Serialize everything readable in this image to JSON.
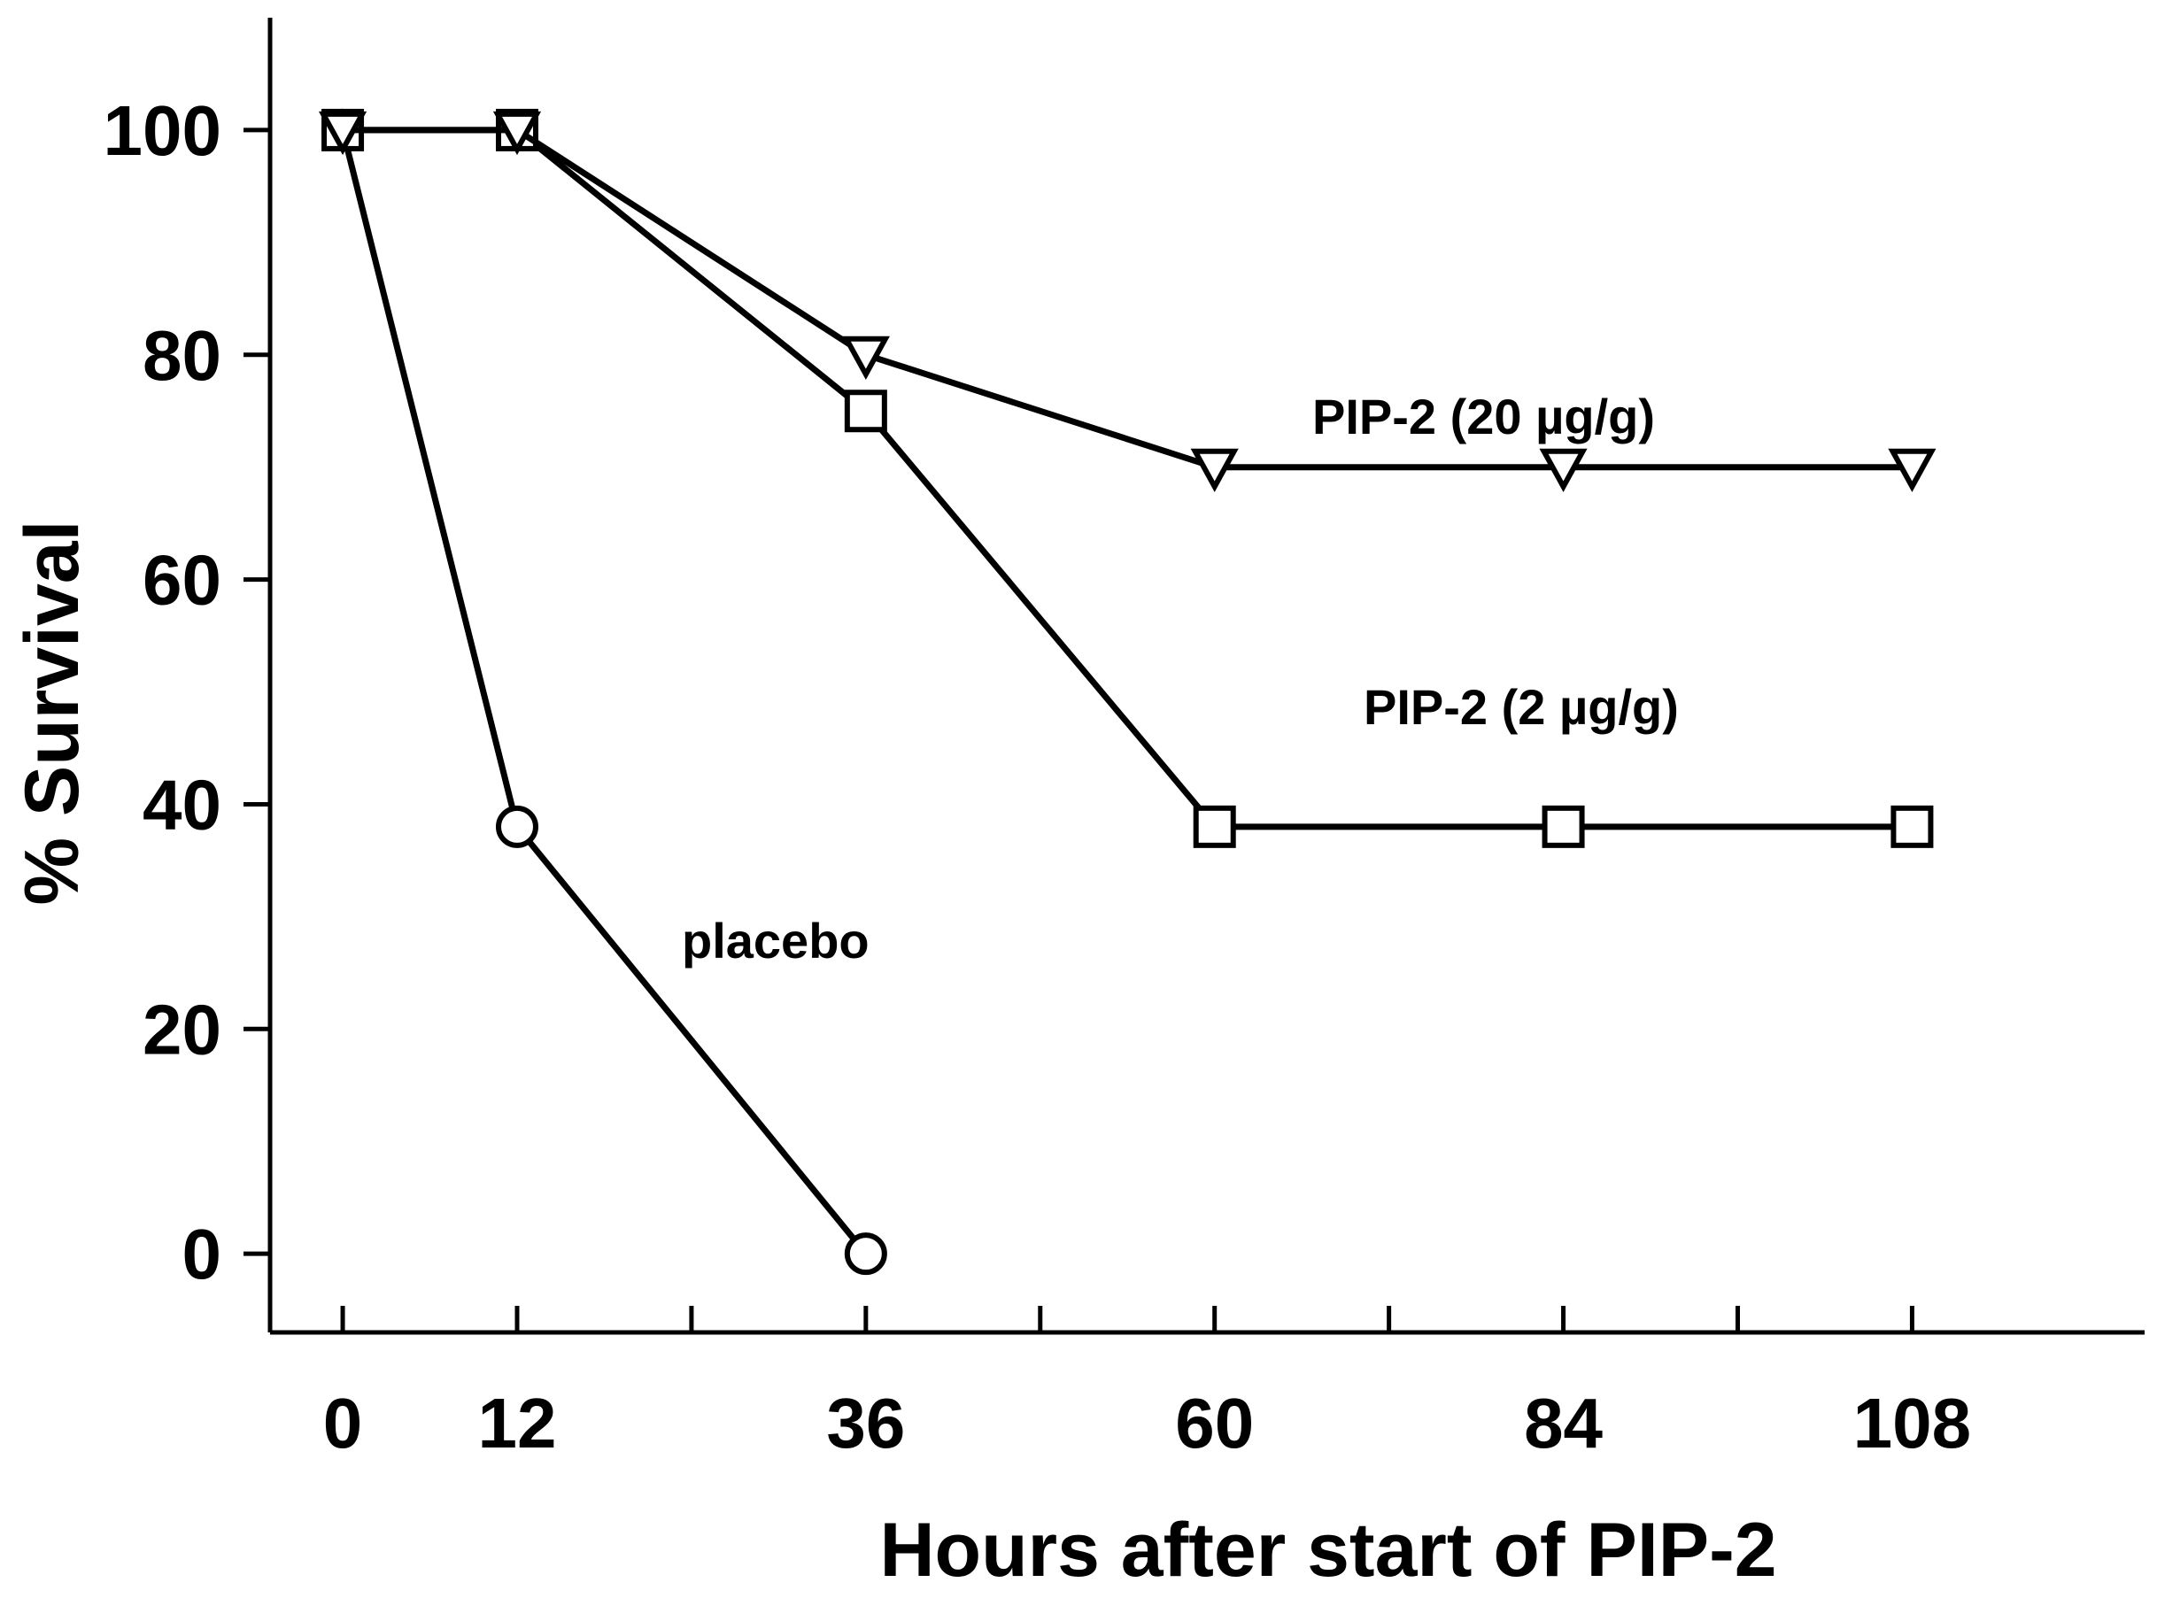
{
  "chart_data": {
    "type": "line",
    "title": "",
    "xlabel": "Hours after start of PIP-2",
    "ylabel": "% Survival",
    "x_ticks": [
      0,
      12,
      36,
      60,
      84,
      108
    ],
    "x_tick_labels": [
      "0",
      "12",
      "36",
      "60",
      "84",
      "108"
    ],
    "y_ticks": [
      0,
      20,
      40,
      60,
      80,
      100
    ],
    "y_tick_labels": [
      "0",
      "20",
      "40",
      "60",
      "80",
      "100"
    ],
    "xlim": [
      -5,
      124
    ],
    "ylim": [
      -7,
      110
    ],
    "grid": false,
    "series": [
      {
        "name": "placebo",
        "label": "placebo",
        "marker": "circle",
        "x": [
          0,
          12,
          36
        ],
        "values": [
          100,
          38,
          0
        ]
      },
      {
        "name": "PIP-2 (2 µg/g)",
        "label": "PIP-2 (2 µg/g)",
        "marker": "square",
        "x": [
          0,
          12,
          36,
          60,
          84,
          108
        ],
        "values": [
          100,
          100,
          75,
          38,
          38,
          38
        ]
      },
      {
        "name": "PIP-2 (20 µg/g)",
        "label": "PIP-2 (20 µg/g)",
        "marker": "triangle-down",
        "x": [
          0,
          12,
          36,
          60,
          84,
          108
        ],
        "values": [
          100,
          100,
          80,
          70,
          70,
          70
        ]
      }
    ]
  }
}
